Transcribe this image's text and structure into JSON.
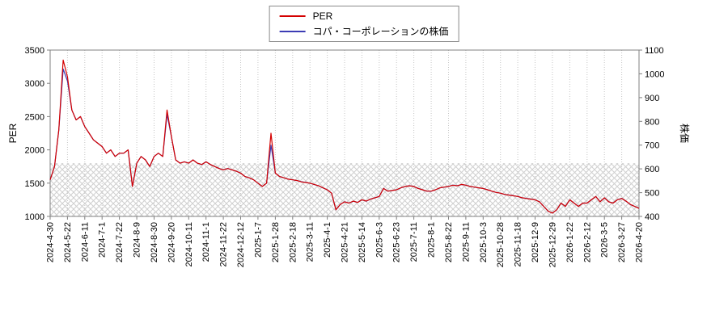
{
  "chart_data": {
    "type": "line",
    "title": "",
    "legend_position": "top-center",
    "grid": "vertical-dotted",
    "x_tick_labels": [
      "2024-4-30",
      "2024-5-22",
      "2024-6-11",
      "2024-7-1",
      "2024-7-22",
      "2024-8-9",
      "2024-8-30",
      "2024-9-20",
      "2024-10-11",
      "2024-11-1",
      "2024-11-22",
      "2024-12-12",
      "2025-1-7",
      "2025-1-28",
      "2025-2-18",
      "2025-3-11",
      "2025-4-1",
      "2025-4-21",
      "2025-5-14",
      "2025-6-3",
      "2025-6-23",
      "2025-7-11",
      "2025-8-1",
      "2025-8-22",
      "2025-9-11",
      "2025-10-3",
      "2025-10-28",
      "2025-11-18",
      "2025-12-9",
      "2025-12-29",
      "2026-1-22",
      "2026-2-12",
      "2026-3-5",
      "2026-3-27",
      "2026-4-20"
    ],
    "left_axis": {
      "title": "PER",
      "min": 1000,
      "max": 3500,
      "tick_values": [
        1000,
        1500,
        2000,
        2500,
        3000,
        3500
      ]
    },
    "right_axis": {
      "title": "株価",
      "min": 400,
      "max": 1100,
      "tick_values": [
        400,
        500,
        600,
        700,
        800,
        900,
        1000,
        1100
      ]
    },
    "hatched_band": {
      "axis": "left",
      "from": 1000,
      "to": 1800
    },
    "series": [
      {
        "name": "PER",
        "axis": "left",
        "color": "#d40000",
        "values": [
          1550,
          1750,
          2300,
          3350,
          3100,
          2600,
          2450,
          2500,
          2350,
          2250,
          2150,
          2100,
          2050,
          1950,
          2000,
          1900,
          1950,
          1950,
          2000,
          1450,
          1800,
          1900,
          1850,
          1750,
          1900,
          1950,
          1900,
          2600,
          2200,
          1850,
          1800,
          1820,
          1800,
          1850,
          1800,
          1780,
          1820,
          1780,
          1750,
          1720,
          1700,
          1720,
          1700,
          1680,
          1650,
          1600,
          1580,
          1550,
          1500,
          1450,
          1500,
          2250,
          1650,
          1600,
          1580,
          1560,
          1550,
          1540,
          1520,
          1510,
          1500,
          1480,
          1460,
          1430,
          1400,
          1350,
          1100,
          1180,
          1220,
          1200,
          1230,
          1210,
          1250,
          1230,
          1260,
          1280,
          1300,
          1420,
          1380,
          1390,
          1400,
          1430,
          1450,
          1460,
          1450,
          1420,
          1400,
          1380,
          1380,
          1400,
          1430,
          1440,
          1450,
          1470,
          1460,
          1480,
          1470,
          1450,
          1440,
          1430,
          1420,
          1400,
          1380,
          1360,
          1350,
          1330,
          1320,
          1310,
          1300,
          1280,
          1270,
          1260,
          1250,
          1220,
          1150,
          1080,
          1050,
          1100,
          1200,
          1150,
          1250,
          1200,
          1150,
          1200,
          1200,
          1250,
          1300,
          1220,
          1280,
          1220,
          1200,
          1250,
          1270,
          1230,
          1180,
          1150,
          1120
        ]
      },
      {
        "name": "コパ・コーポレーションの株価",
        "axis": "right",
        "color": "#3c3cb4",
        "values": [
          554,
          610,
          764,
          1020,
          970,
          848,
          806,
          820,
          778,
          750,
          722,
          708,
          694,
          666,
          680,
          652,
          666,
          666,
          680,
          526,
          624,
          652,
          638,
          610,
          652,
          666,
          652,
          830,
          736,
          638,
          624,
          630,
          624,
          638,
          624,
          618,
          630,
          618,
          610,
          602,
          596,
          602,
          596,
          590,
          582,
          568,
          562,
          554,
          540,
          526,
          540,
          700,
          582,
          568,
          562,
          557,
          554,
          551,
          546,
          543,
          540,
          534,
          529,
          520,
          512,
          498,
          428,
          450,
          462,
          456,
          464,
          459,
          470,
          464,
          473,
          478,
          484,
          518,
          506,
          509,
          512,
          520,
          526,
          529,
          526,
          518,
          512,
          506,
          506,
          512,
          520,
          523,
          526,
          532,
          529,
          534,
          532,
          526,
          523,
          520,
          518,
          512,
          506,
          501,
          498,
          492,
          490,
          487,
          484,
          478,
          476,
          473,
          470,
          462,
          442,
          422,
          414,
          428,
          456,
          442,
          470,
          456,
          442,
          456,
          456,
          470,
          484,
          462,
          478,
          462,
          456,
          470,
          476,
          464,
          450,
          442,
          434
        ]
      }
    ]
  }
}
